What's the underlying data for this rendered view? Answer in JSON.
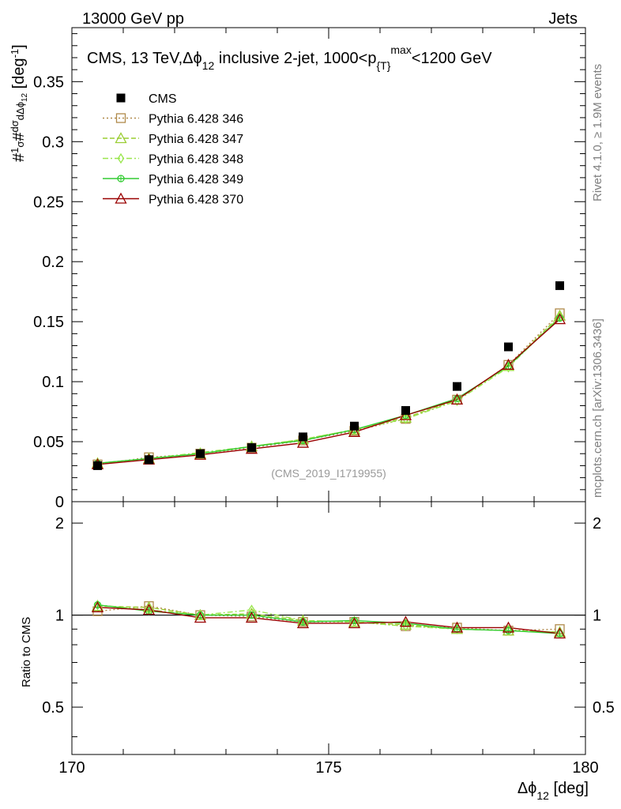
{
  "header": {
    "left": "13000 GeV pp",
    "right": "Jets"
  },
  "side_labels": {
    "rivet": "Rivet 4.1.0, ≥ 1.9M events",
    "mcplots": "mcplots.cern.ch [arXiv:1306.3436]"
  },
  "chart_data": {
    "type": "scatter",
    "title": "CMS, 13 TeV,Δϕ_12 inclusive 2-jet, 1000<p_{T}^max<1200 GeV",
    "analysis_tag": "(CMS_2019_I1719955)",
    "xlabel": "Δϕ_12 [deg]",
    "ylabel": "#1/σ #dσ/dΔϕ_12 [deg^-1]",
    "ratio_ylabel": "Ratio to CMS",
    "xlim": [
      170,
      180
    ],
    "ylim": [
      0,
      0.395
    ],
    "ratio_ylim": [
      0.35,
      2.35
    ],
    "x_ticks": [
      "170",
      "175",
      "180"
    ],
    "y_ticks": [
      "0",
      "0.05",
      "0.1",
      "0.15",
      "0.2",
      "0.25",
      "0.3",
      "0.35"
    ],
    "ratio_ticks": [
      "0.5",
      "1",
      "2"
    ],
    "x": [
      170.5,
      171.5,
      172.5,
      173.5,
      174.5,
      175.5,
      176.5,
      177.5,
      178.5,
      179.5
    ],
    "data": {
      "name": "CMS",
      "color": "#000000",
      "values": [
        0.03,
        0.035,
        0.04,
        0.045,
        0.054,
        0.063,
        0.076,
        0.096,
        0.129,
        0.18
      ]
    },
    "series": [
      {
        "name": "Pythia 6.428 346",
        "color": "#b08a4a",
        "marker": "square",
        "dash": "2,3",
        "values": [
          0.031,
          0.037,
          0.04,
          0.045,
          0.051,
          0.059,
          0.069,
          0.085,
          0.114,
          0.157
        ],
        "ratio": [
          1.03,
          1.07,
          1.0,
          0.99,
          0.95,
          0.95,
          0.92,
          0.91,
          0.89,
          0.9
        ]
      },
      {
        "name": "Pythia 6.428 347",
        "color": "#9acd32",
        "marker": "triangle",
        "dash": "6,3",
        "values": [
          0.032,
          0.036,
          0.04,
          0.046,
          0.052,
          0.06,
          0.07,
          0.085,
          0.113,
          0.155
        ],
        "ratio": [
          1.07,
          1.06,
          1.0,
          1.01,
          0.96,
          0.95,
          0.93,
          0.9,
          0.89,
          0.88
        ]
      },
      {
        "name": "Pythia 6.428 348",
        "color": "#99e64d",
        "marker": "diamond",
        "dash": "7,3,2,3",
        "values": [
          0.032,
          0.036,
          0.041,
          0.046,
          0.052,
          0.06,
          0.069,
          0.084,
          0.112,
          0.154
        ],
        "ratio": [
          1.08,
          1.04,
          1.0,
          1.04,
          0.96,
          0.95,
          0.92,
          0.9,
          0.89,
          0.88
        ]
      },
      {
        "name": "Pythia 6.428 349",
        "color": "#33cc33",
        "marker": "circle",
        "dash": "",
        "values": [
          0.032,
          0.036,
          0.04,
          0.046,
          0.051,
          0.06,
          0.072,
          0.086,
          0.113,
          0.153
        ],
        "ratio": [
          1.08,
          1.03,
          1.0,
          1.0,
          0.95,
          0.96,
          0.94,
          0.9,
          0.89,
          0.87
        ]
      },
      {
        "name": "Pythia 6.428 370",
        "color": "#990000",
        "marker": "triangle",
        "dash": "",
        "values": [
          0.031,
          0.035,
          0.039,
          0.044,
          0.049,
          0.058,
          0.072,
          0.085,
          0.114,
          0.152
        ],
        "ratio": [
          1.06,
          1.04,
          0.98,
          0.98,
          0.94,
          0.94,
          0.95,
          0.91,
          0.91,
          0.87
        ]
      }
    ]
  }
}
